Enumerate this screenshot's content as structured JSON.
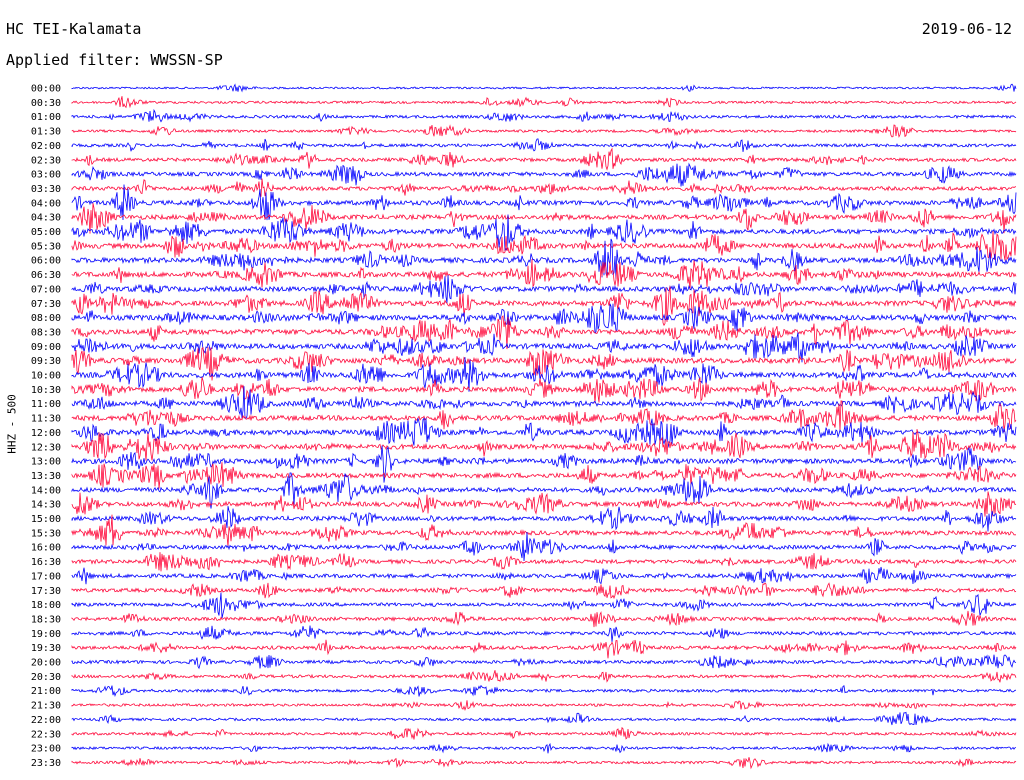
{
  "header": {
    "station": "HC TEI-Kalamata",
    "date": "2019-06-12",
    "filter_prefix": "Applied filter:",
    "filter_name": "WWSSN-SP"
  },
  "colors": {
    "odd_trace": "#0000ff",
    "even_trace": "#ff0a3c",
    "background": "#ffffff"
  },
  "chart_data": {
    "type": "line",
    "title": "HC TEI-Kalamata",
    "ylabel": "HHZ - 500",
    "time_labels": [
      "00:00",
      "00:30",
      "01:00",
      "01:30",
      "02:00",
      "02:30",
      "03:00",
      "03:30",
      "04:00",
      "04:30",
      "05:00",
      "05:30",
      "06:00",
      "06:30",
      "07:00",
      "07:30",
      "08:00",
      "08:30",
      "09:00",
      "09:30",
      "10:00",
      "10:30",
      "11:00",
      "11:30",
      "12:00",
      "12:30",
      "13:00",
      "13:30",
      "14:00",
      "14:30",
      "15:00",
      "15:30",
      "16:00",
      "16:30",
      "17:00",
      "17:30",
      "18:00",
      "18:30",
      "19:00",
      "19:30",
      "20:00",
      "20:30",
      "21:00",
      "21:30",
      "22:00",
      "22:30",
      "23:00",
      "23:30"
    ],
    "trace_colors": [
      "#0000ff",
      "#ff0a3c"
    ],
    "activity_levels": [
      0.15,
      0.25,
      0.35,
      0.3,
      0.4,
      0.5,
      0.6,
      0.6,
      0.75,
      0.75,
      0.8,
      0.85,
      0.85,
      0.85,
      0.85,
      0.85,
      0.9,
      0.9,
      0.9,
      0.9,
      0.9,
      0.85,
      0.85,
      0.85,
      0.85,
      0.85,
      0.85,
      0.8,
      0.75,
      0.75,
      0.7,
      0.7,
      0.65,
      0.6,
      0.6,
      0.55,
      0.5,
      0.5,
      0.5,
      0.5,
      0.45,
      0.4,
      0.35,
      0.3,
      0.3,
      0.3,
      0.3,
      0.3
    ],
    "grid": false
  }
}
